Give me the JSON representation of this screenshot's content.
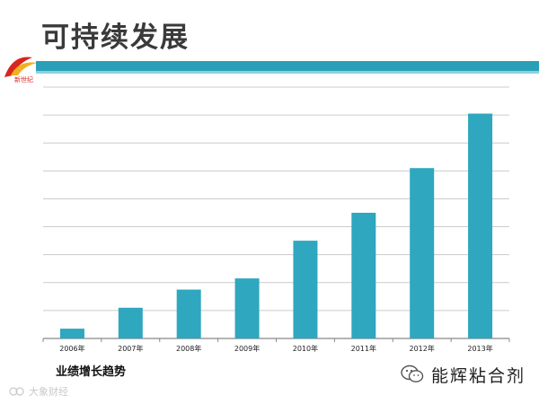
{
  "slide": {
    "title": "可持续发展",
    "caption": "业绩增长趋势",
    "logo_text": "新世纪",
    "wechat_account": "能辉粘合剂",
    "watermark_text": "大象财经"
  },
  "colors": {
    "bar": "#2ea7bf",
    "banner": "#2aa0b8",
    "banner_light": "#8fd0de",
    "grid": "#cccccc",
    "axis": "#888888",
    "logo_red": "#d9261c",
    "logo_gold": "#f2b01e"
  },
  "chart_data": {
    "type": "bar",
    "categories": [
      "2006年",
      "2007年",
      "2008年",
      "2009年",
      "2010年",
      "2011年",
      "2012年",
      "2013年"
    ],
    "values": [
      0.35,
      1.1,
      1.75,
      2.15,
      3.5,
      4.5,
      6.1,
      8.05
    ],
    "title": "",
    "xlabel": "",
    "ylabel": "",
    "ylim": [
      0,
      9
    ],
    "grid": true,
    "y_tick_labels_shown": false,
    "legend": "none"
  }
}
